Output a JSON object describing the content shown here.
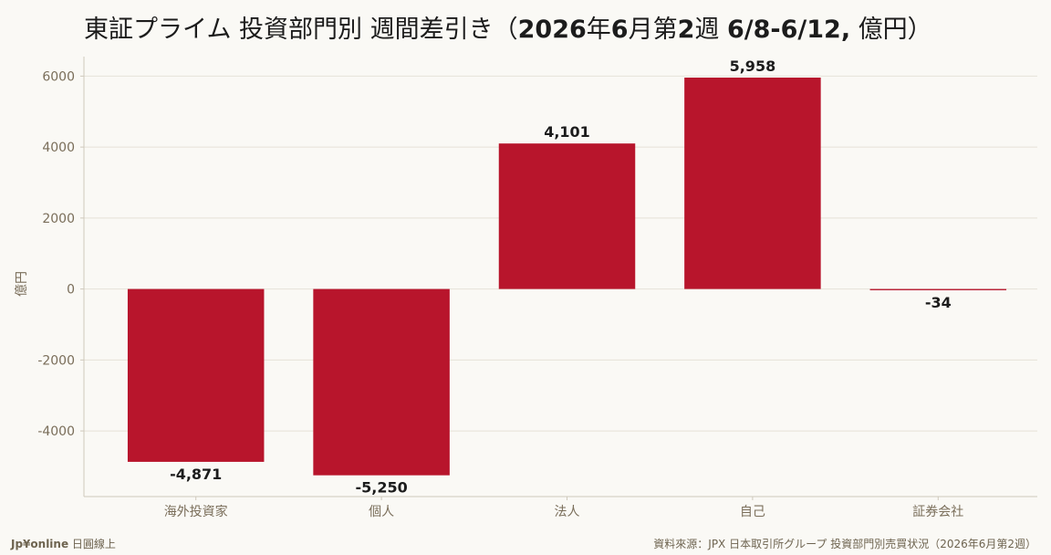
{
  "title": {
    "part1": "東証プライム 投資部門別 週間差引き（",
    "part2": "2026",
    "part3": "年",
    "part4": "6",
    "part5": "月第",
    "part6": "2",
    "part7": "週 ",
    "part8": "6/8-6/12,",
    "part9": " 億円）"
  },
  "footer": {
    "brand": "Jp¥online",
    "brand_sub": " 日圓線上",
    "source": "資料來源：JPX 日本取引所グループ 投資部門別売買状況（2026年6月第2週）"
  },
  "colors": {
    "bar": "#b8152c",
    "grid": "#e6e2d8",
    "axis": "#cfc9bc"
  },
  "chart_data": {
    "type": "bar",
    "title": "東証プライム 投資部門別 週間差引き（2026年6月第2週 6/8-6/12, 億円）",
    "categories": [
      "海外投資家",
      "個人",
      "法人",
      "自己",
      "証券会社"
    ],
    "values": [
      -4871,
      -5250,
      4101,
      5958,
      -34
    ],
    "value_labels": [
      "-4,871",
      "-5,250",
      "4,101",
      "5,958",
      "-34"
    ],
    "ylabel": "億円",
    "yticks": [
      -4000,
      -2000,
      0,
      2000,
      4000,
      6000
    ],
    "ytick_labels": [
      "-4000",
      "-2000",
      "0",
      "2000",
      "4000",
      "6000"
    ],
    "ylim": [
      -5850,
      6550
    ],
    "grid": true
  }
}
